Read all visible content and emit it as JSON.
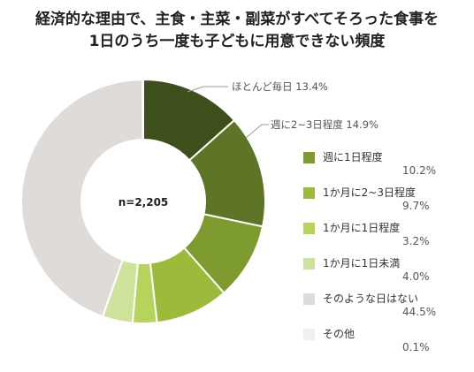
{
  "chart_data": {
    "type": "pie",
    "title_lines": [
      "経済的な理由で、主食・主菜・副菜がすべてそろった食事を",
      "1日のうち一度も子どもに用意できない頻度"
    ],
    "center_label": "n=2,205",
    "slices": [
      {
        "label": "ほとんど毎日",
        "value": 13.4,
        "value_text": "13.4%",
        "color": "#3d4f1a"
      },
      {
        "label": "週に2~3日程度",
        "value": 14.9,
        "value_text": "14.9%",
        "color": "#5e7426"
      },
      {
        "label": "週に1日程度",
        "value": 10.2,
        "value_text": "10.2%",
        "color": "#7e9b2f"
      },
      {
        "label": "1か月に2~3日程度",
        "value": 9.7,
        "value_text": "9.7%",
        "color": "#9cbb3a"
      },
      {
        "label": "1か月に1日程度",
        "value": 3.2,
        "value_text": "3.2%",
        "color": "#b6d35c"
      },
      {
        "label": "1か月に1日未満",
        "value": 4.0,
        "value_text": "4.0%",
        "color": "#cde39b"
      },
      {
        "label": "そのような日はない",
        "value": 44.5,
        "value_text": "44.5%",
        "color": "#dedbd8"
      },
      {
        "label": "その他",
        "value": 0.1,
        "value_text": "0.1%",
        "color": "#f2f0ee"
      }
    ],
    "annotations": [
      {
        "text": "ほとんど毎日 13.4%"
      },
      {
        "text": "週に2~3日程度 14.9%"
      }
    ],
    "legend_placement": "right"
  }
}
